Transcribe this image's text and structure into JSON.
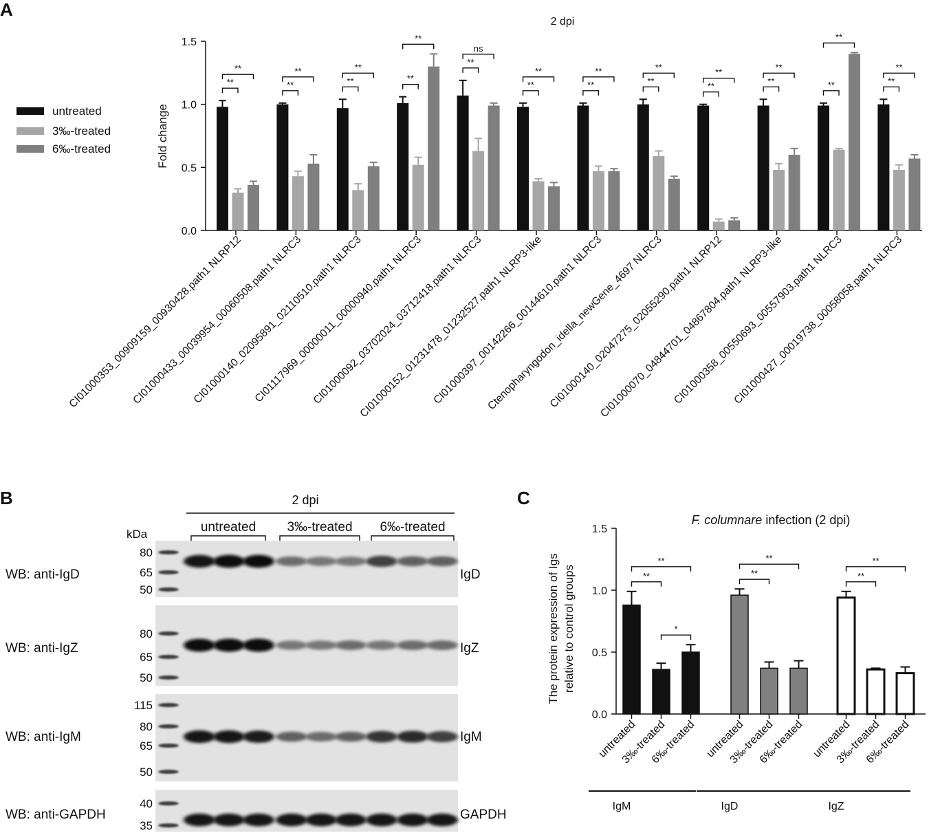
{
  "panels": {
    "a": "A",
    "b": "B",
    "c": "C"
  },
  "chart_data": [
    {
      "type": "bar",
      "title": "2 dpi",
      "ylabel": "Fold change",
      "ylim": [
        0,
        1.5
      ],
      "yticks": [
        "0.0",
        "0.5",
        "1.0",
        "1.5"
      ],
      "legend_position": "left",
      "grid": false,
      "categories": [
        "CI01000353_00909159_00930428.path1 NLRP12",
        "CI01000433_00039954_00060508.path1 NLRC3",
        "CI01000140_02095891_02110510.path1 NLRC3",
        "CI01117969_00000011_00000940.path1 NLRC3",
        "CI01000092_03702024_03712418.path1 NLRC3",
        "CI01000152_01231478_01232527.path1 NLRP3-like",
        "CI01000397_00142266_00144610.path1 NLRC3",
        "Ctenopharyngodon_idella_newGene_4697 NLRC3",
        "CI01000140_02047275_02055290.path1 NLRP12",
        "CI01000070_04844701_04867804.path1 NLRP3-like",
        "CI01000358_00550693_00557903.path1 NLRC3",
        "CI01000427_00019738_00058058.path1 NLRC3"
      ],
      "series": [
        {
          "name": "untreated",
          "color": "#111111",
          "values": [
            0.98,
            1.0,
            0.97,
            1.01,
            1.07,
            0.98,
            0.99,
            1.0,
            0.99,
            0.99,
            0.99,
            1.0
          ],
          "errors": [
            0.05,
            0.01,
            0.07,
            0.05,
            0.12,
            0.03,
            0.02,
            0.04,
            0.01,
            0.05,
            0.02,
            0.04
          ]
        },
        {
          "name": "3‰-treated",
          "color": "#a6a6a6",
          "values": [
            0.3,
            0.43,
            0.32,
            0.52,
            0.63,
            0.39,
            0.47,
            0.59,
            0.07,
            0.48,
            0.64,
            0.48
          ],
          "errors": [
            0.03,
            0.04,
            0.05,
            0.06,
            0.1,
            0.02,
            0.04,
            0.04,
            0.02,
            0.05,
            0.01,
            0.04
          ]
        },
        {
          "name": "6‰-treated",
          "color": "#7f7f7f",
          "values": [
            0.36,
            0.53,
            0.51,
            1.3,
            0.99,
            0.35,
            0.47,
            0.41,
            0.08,
            0.6,
            1.4,
            0.57
          ],
          "errors": [
            0.03,
            0.07,
            0.03,
            0.1,
            0.02,
            0.03,
            0.02,
            0.02,
            0.02,
            0.05,
            0.01,
            0.03
          ]
        }
      ],
      "significance": [
        {
          "low": "**",
          "high": "**"
        },
        {
          "low": "**",
          "high": "**"
        },
        {
          "low": "**",
          "high": "**"
        },
        {
          "low": "**",
          "high": "**"
        },
        {
          "low": "**",
          "high": "ns"
        },
        {
          "low": "**",
          "high": "**"
        },
        {
          "low": "**",
          "high": "**"
        },
        {
          "low": "**",
          "high": "**"
        },
        {
          "low": "**",
          "high": "**"
        },
        {
          "low": "**",
          "high": "**"
        },
        {
          "low": "**",
          "high": "**"
        },
        {
          "low": "**",
          "high": "**"
        }
      ]
    },
    {
      "type": "bar",
      "title_italic": "F. columnare",
      "title_rest": " infection (2 dpi)",
      "ylabel_line1": "The protein expression of Igs",
      "ylabel_line2": "relative to control groups",
      "ylim": [
        0,
        1.5
      ],
      "yticks": [
        "0.0",
        "0.5",
        "1.0",
        "1.5"
      ],
      "grid": false,
      "bar_labels": [
        "untreated",
        "3‰-treated",
        "6‰-treated"
      ],
      "groups": [
        {
          "name": "IgM",
          "fill": "#111111",
          "values": [
            0.88,
            0.36,
            0.5
          ],
          "errors": [
            0.11,
            0.05,
            0.06
          ],
          "sig": [
            "**",
            "**",
            "*"
          ]
        },
        {
          "name": "IgD",
          "fill": "#808080",
          "values": [
            0.96,
            0.37,
            0.37
          ],
          "errors": [
            0.05,
            0.05,
            0.06
          ],
          "sig": [
            "**",
            "**"
          ]
        },
        {
          "name": "IgZ",
          "fill": "#ffffff",
          "values": [
            0.94,
            0.36,
            0.33
          ],
          "errors": [
            0.05,
            0.01,
            0.05
          ],
          "sig": [
            "**",
            "**"
          ]
        }
      ]
    }
  ],
  "blot": {
    "title": "2 dpi",
    "groups": [
      "untreated",
      "3‰-treated",
      "6‰-treated"
    ],
    "kda_label": "kDa",
    "rows": [
      {
        "wb": "WB: anti-IgD",
        "band": "IgD",
        "markers": [
          "80",
          "65",
          "50"
        ],
        "intensity": [
          0.95,
          0.98,
          0.97,
          0.55,
          0.5,
          0.5,
          0.75,
          0.6,
          0.6
        ]
      },
      {
        "wb": "WB: anti-IgZ",
        "band": "IgZ",
        "markers": [
          "80",
          "65",
          "50"
        ],
        "intensity": [
          0.98,
          1.0,
          1.0,
          0.5,
          0.5,
          0.55,
          0.5,
          0.55,
          0.55
        ]
      },
      {
        "wb": "WB: anti-IgM",
        "band": "IgM",
        "markers": [
          "115",
          "80",
          "65",
          "50"
        ],
        "intensity": [
          0.95,
          0.95,
          0.9,
          0.6,
          0.55,
          0.6,
          0.8,
          0.85,
          0.75
        ]
      },
      {
        "wb": "WB: anti-GAPDH",
        "band": "GAPDH",
        "markers": [
          "40",
          "35"
        ],
        "intensity": [
          0.95,
          0.95,
          0.95,
          0.95,
          0.95,
          0.95,
          0.95,
          0.95,
          0.95
        ]
      }
    ]
  }
}
